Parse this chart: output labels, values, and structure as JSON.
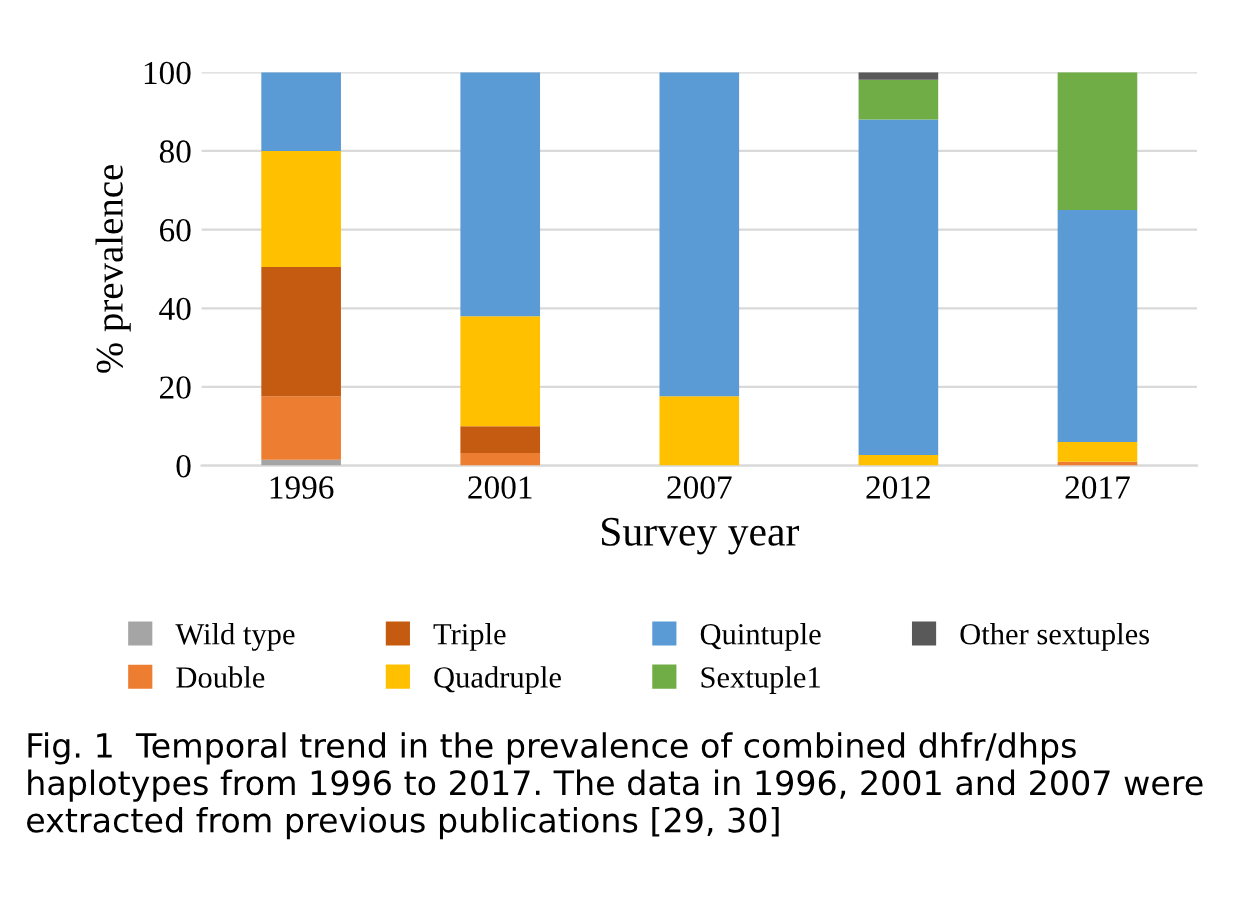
{
  "chart_data": {
    "type": "bar",
    "stacked": true,
    "xlabel": "Survey year",
    "ylabel": "% prevalence",
    "categories": [
      "1996",
      "2001",
      "2007",
      "2012",
      "2017"
    ],
    "series": [
      {
        "name": "Wild type",
        "color": "#a5a5a5",
        "values": [
          1.5,
          0,
          0,
          0,
          0
        ]
      },
      {
        "name": "Double",
        "color": "#ed7d31",
        "values": [
          16.1,
          3.2,
          0,
          0,
          1
        ]
      },
      {
        "name": "Triple",
        "color": "#c55a11",
        "values": [
          32.9,
          6.8,
          0,
          0,
          0
        ]
      },
      {
        "name": "Quadruple",
        "color": "#ffc000",
        "values": [
          29.5,
          28,
          17.6,
          2.7,
          5
        ]
      },
      {
        "name": "Quintuple",
        "color": "#5b9bd5",
        "values": [
          20,
          62,
          82.4,
          85.3,
          59
        ]
      },
      {
        "name": "Sextuple1",
        "color": "#70ad47",
        "values": [
          0,
          0,
          0,
          10.1,
          35
        ]
      },
      {
        "name": "Other sextuples",
        "color": "#595959",
        "values": [
          0,
          0,
          0,
          1.9,
          0
        ]
      }
    ],
    "ylim": [
      0,
      100
    ],
    "yticks": [
      0,
      20,
      40,
      60,
      80,
      100
    ],
    "grid": "y",
    "legend": "bottom",
    "annotations": [
      "Fig. 1  Temporal trend in the prevalence of combined dhfr/dhps haplotypes from 1996 to 2017. The data in 1996, 2001 and 2007 were extracted from previous publications [29, 30]"
    ]
  }
}
